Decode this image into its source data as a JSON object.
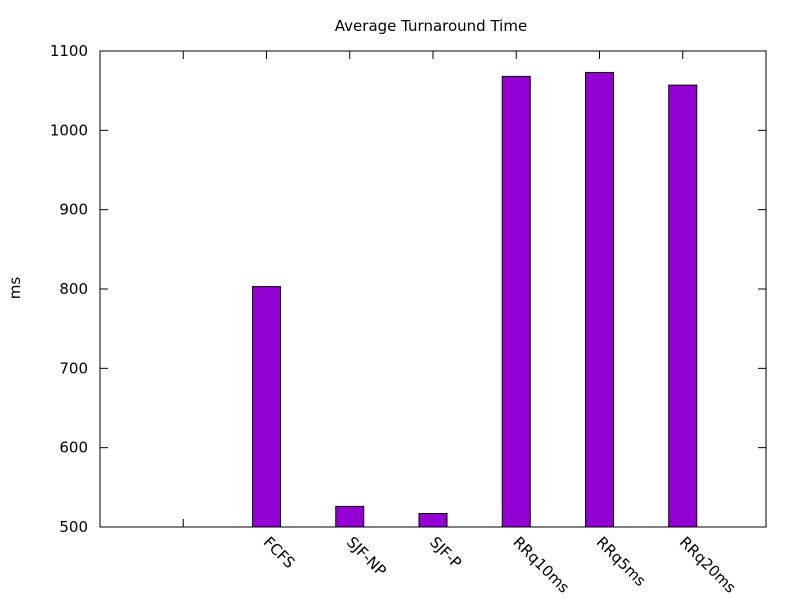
{
  "chart_data": {
    "type": "bar",
    "title": "Average Turnaround Time",
    "xlabel": "",
    "ylabel": "ms",
    "categories": [
      "",
      "FCFS",
      "SJF-NP",
      "SJF-P",
      "RRq10ms",
      "RRq5ms",
      "RRq20ms"
    ],
    "values": [
      null,
      803,
      526,
      517,
      1068,
      1073,
      1057
    ],
    "ylim": [
      500,
      1100
    ],
    "yticks": [
      500,
      600,
      700,
      800,
      900,
      1000,
      1100
    ],
    "grid": false,
    "legend": "none",
    "colors": {
      "bar_fill": "#9400d3",
      "bar_stroke": "#000000",
      "axis": "#000000",
      "background": "#ffffff"
    }
  }
}
